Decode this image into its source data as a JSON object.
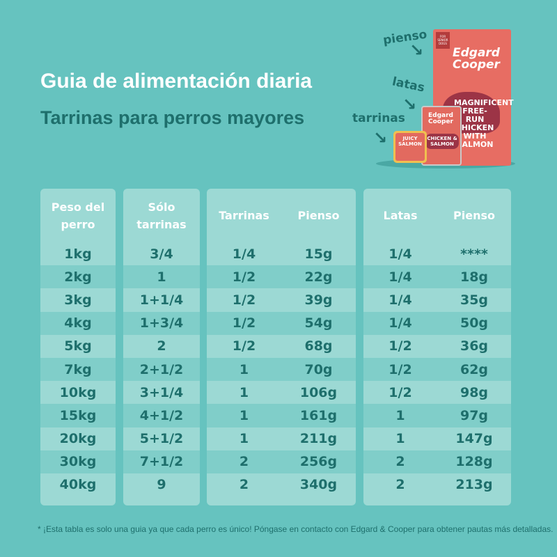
{
  "header": {
    "title": "Guia de alimentación diaria",
    "subtitle": "Tarrinas para perros mayores"
  },
  "products": {
    "labels": {
      "pienso": "pienso",
      "latas": "latas",
      "tarrinas": "tarrinas"
    },
    "brand": "Edgard Cooper",
    "bag_tag": "FOR SENIOR DOGS",
    "bag_product": "MAGNIFICENT FREE-RUN CHICKEN WITH SALMON",
    "can_product": "CHICKEN & SALMON",
    "tray_product": "JUICY SALMON",
    "colors": {
      "pack": "#e76d63",
      "accent": "#9c3446"
    }
  },
  "tables": {
    "peso": {
      "header": [
        "Peso del",
        "perro"
      ],
      "rows": [
        "1kg",
        "2kg",
        "3kg",
        "4kg",
        "5kg",
        "7kg",
        "10kg",
        "15kg",
        "20kg",
        "30kg",
        "40kg"
      ]
    },
    "solo": {
      "header": [
        "Sólo",
        "tarrinas"
      ],
      "rows": [
        "3/4",
        "1",
        "1+1/4",
        "1+3/4",
        "2",
        "2+1/2",
        "3+1/4",
        "4+1/2",
        "5+1/2",
        "7+1/2",
        "9"
      ]
    },
    "tarrinas_pienso": {
      "headers": [
        "Tarrinas",
        "Pienso"
      ],
      "rows": [
        [
          "1/4",
          "15g"
        ],
        [
          "1/2",
          "22g"
        ],
        [
          "1/2",
          "39g"
        ],
        [
          "1/2",
          "54g"
        ],
        [
          "1/2",
          "68g"
        ],
        [
          "1",
          "70g"
        ],
        [
          "1",
          "106g"
        ],
        [
          "1",
          "161g"
        ],
        [
          "1",
          "211g"
        ],
        [
          "2",
          "256g"
        ],
        [
          "2",
          "340g"
        ]
      ]
    },
    "latas_pienso": {
      "headers": [
        "Latas",
        "Pienso"
      ],
      "rows": [
        [
          "1/4",
          "****"
        ],
        [
          "1/4",
          "18g"
        ],
        [
          "1/4",
          "35g"
        ],
        [
          "1/4",
          "50g"
        ],
        [
          "1/2",
          "36g"
        ],
        [
          "1/2",
          "62g"
        ],
        [
          "1/2",
          "98g"
        ],
        [
          "1",
          "97g"
        ],
        [
          "1",
          "147g"
        ],
        [
          "2",
          "128g"
        ],
        [
          "2",
          "213g"
        ]
      ]
    }
  },
  "footnote": {
    "bullet": "*",
    "text": "¡Esta tabla es solo una guia ya que cada perro es único! Póngase en contacto con Edgard & Cooper para obtener pautas más detalladas."
  },
  "colors": {
    "background": "#66c3bf",
    "panel": "#9cd9d4",
    "row_alt": "#80cec9",
    "text": "#1e6f6c"
  }
}
